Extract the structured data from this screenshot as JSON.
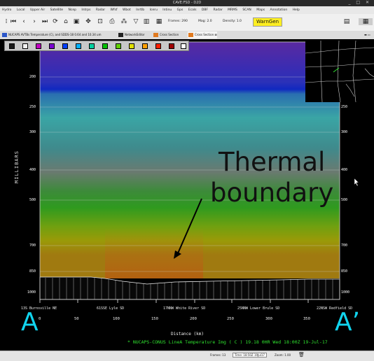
{
  "window": {
    "title": "CAVE:FSD - D2D",
    "controls": "_ □ ✕"
  },
  "menu": [
    "Hydro",
    "Local",
    "Upper Air",
    "Satellite",
    "Ncep",
    "Intrps",
    "Radar",
    "Wfsf",
    "Wbot",
    "Inrtlb",
    "Iceru",
    "Intinu",
    "Gps",
    "Ecals",
    "DBF",
    "Radar",
    "MRMS",
    "SCAN",
    "Maps",
    "Annotation",
    "Help"
  ],
  "toolbar": {
    "frames_label": "Frames: 290",
    "mag_label": "Mag: 2.0",
    "density_label": "Density: 1.0",
    "warngen_label": "WarnGen"
  },
  "tabs": [
    {
      "label": "NUCAPS AVTBs Temperature (C), and SDDS-18 0.64 and 10.34 um",
      "color": "#2a56c8"
    },
    {
      "label": "NetworkEditor",
      "color": "#222"
    },
    {
      "label": "Cross Section",
      "color": "#e07a20"
    },
    {
      "label": "Cross Section",
      "color": "#e07a20"
    }
  ],
  "colors": {
    "palette": [
      "#1a1a1a",
      "#f2f2f2",
      "#c000c0",
      "#7a00d0",
      "#0040ff",
      "#00b0ff",
      "#00d0a0",
      "#00c000",
      "#60d000",
      "#e0e000",
      "#ffa000",
      "#ff2000",
      "#a00000",
      "#ffffff"
    ]
  },
  "plot": {
    "ylabel": "MILLIBARS",
    "pressure_ticks": [
      {
        "label": "200",
        "left": "200",
        "right": ""
      },
      {
        "label": "250",
        "left": "250",
        "right": "250"
      },
      {
        "label": "300",
        "left": "300",
        "right": "300"
      },
      {
        "label": "400",
        "left": "400",
        "right": "400"
      },
      {
        "label": "500",
        "left": "500",
        "right": "500"
      },
      {
        "label": "700",
        "left": "700",
        "right": "700"
      },
      {
        "label": "850",
        "left": "850",
        "right": "850"
      },
      {
        "label": "1000",
        "left": "1000",
        "right": "1000"
      }
    ],
    "annotation_line1": "Thermal",
    "annotation_line2": "boundary",
    "locations": [
      "13S Burnsville NE",
      "61SSE Lyle SD",
      "17NNW White River SD",
      "25NNW Lower Brule SD",
      "22NSW Redfield SD"
    ],
    "distance_ticks": [
      "0",
      "50",
      "100",
      "150",
      "200",
      "250",
      "300",
      "350"
    ],
    "xlabel": "Distance (km)",
    "legend": "* NUCAPS-CONUS LineA Temperature Img ( C )   19.18   0HR Wed 18:00Z 19-Jul-17",
    "endpoint_a": "A",
    "endpoint_b": "A’"
  },
  "status": {
    "frames": "Frames: 13",
    "time": "Time: 18:50Z 19Jul17",
    "zoom": "Zoom: 1.00"
  }
}
